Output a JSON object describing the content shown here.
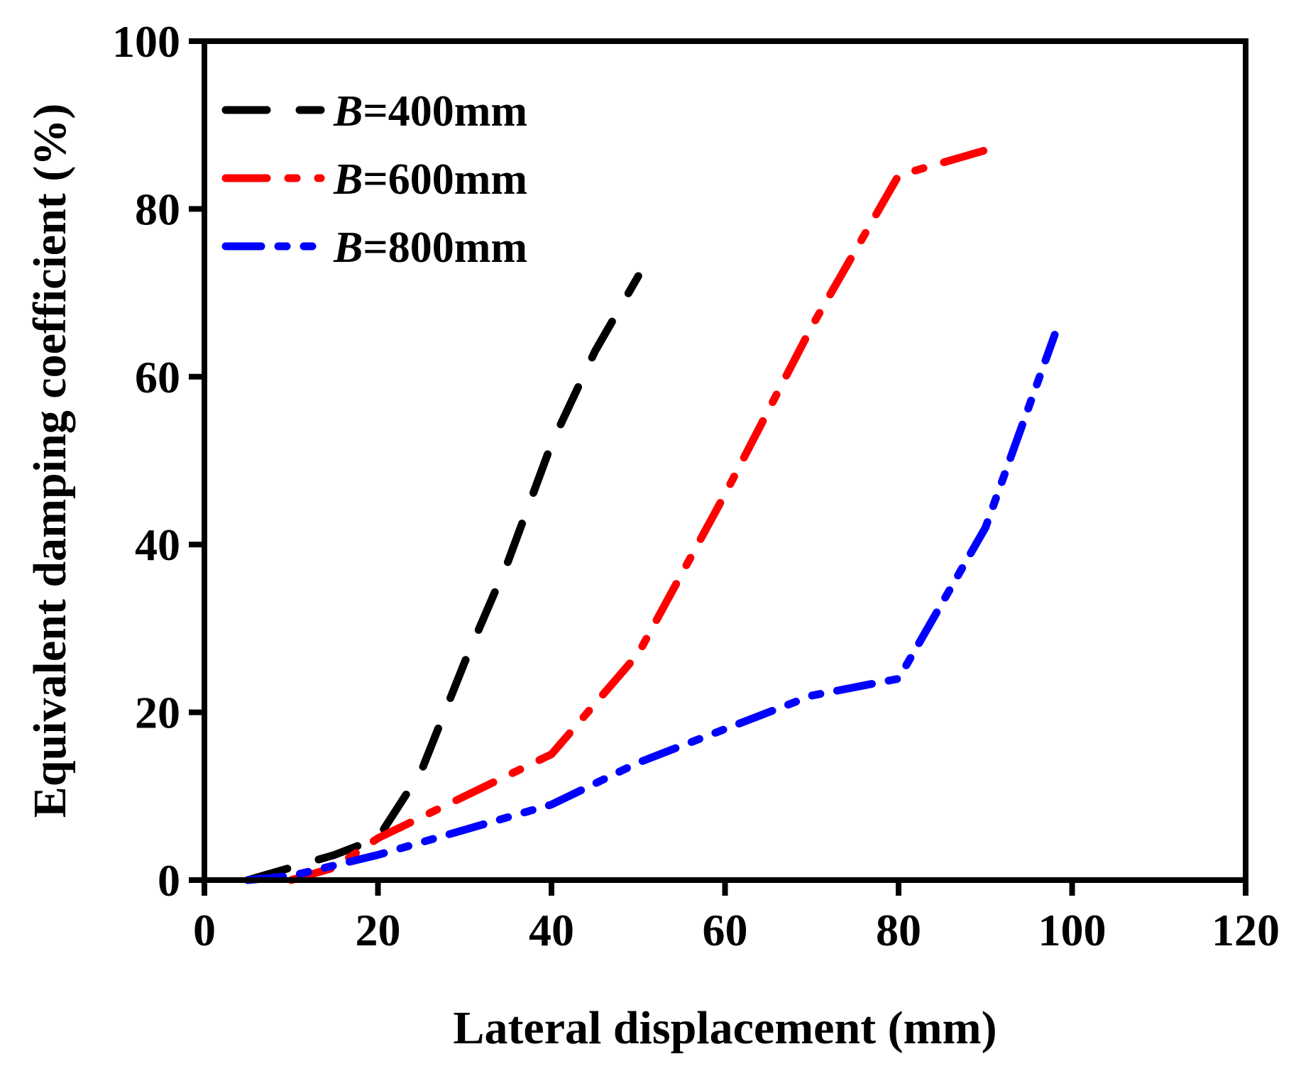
{
  "chart_data": {
    "type": "line",
    "title": "",
    "xlabel": "Lateral displacement (mm)",
    "ylabel": "Equivalent damping coefficient (%)",
    "xlim": [
      0,
      120
    ],
    "ylim": [
      0,
      100
    ],
    "xticks": [
      0,
      20,
      40,
      60,
      80,
      100,
      120
    ],
    "yticks": [
      0,
      20,
      40,
      60,
      80,
      100
    ],
    "grid": false,
    "legend_position": "top-left",
    "series": [
      {
        "name": "B=400mm",
        "name_var": "B",
        "name_rest": "=400mm",
        "color": "#000000",
        "dash": "dash",
        "x": [
          5,
          10,
          15,
          20,
          25,
          30,
          35,
          40,
          45,
          50
        ],
        "y": [
          0,
          1.5,
          3,
          5,
          13,
          26,
          38,
          52,
          63,
          72
        ]
      },
      {
        "name": "B=600mm",
        "name_var": "B",
        "name_rest": "=600mm",
        "color": "#ff0000",
        "dash": "dash-dot",
        "x": [
          10,
          15,
          20,
          30,
          40,
          50,
          60,
          70,
          80,
          90
        ],
        "y": [
          0,
          1.5,
          5,
          10,
          15,
          27,
          46,
          66,
          84,
          87
        ]
      },
      {
        "name": "B=800mm",
        "name_var": "B",
        "name_rest": "=800mm",
        "color": "#0000ff",
        "dash": "dash-dot-dot",
        "x": [
          5,
          10,
          20,
          30,
          40,
          50,
          60,
          70,
          80,
          90,
          98
        ],
        "y": [
          0,
          0.5,
          3,
          6,
          9,
          14,
          18,
          22,
          24,
          42,
          65
        ]
      }
    ]
  }
}
